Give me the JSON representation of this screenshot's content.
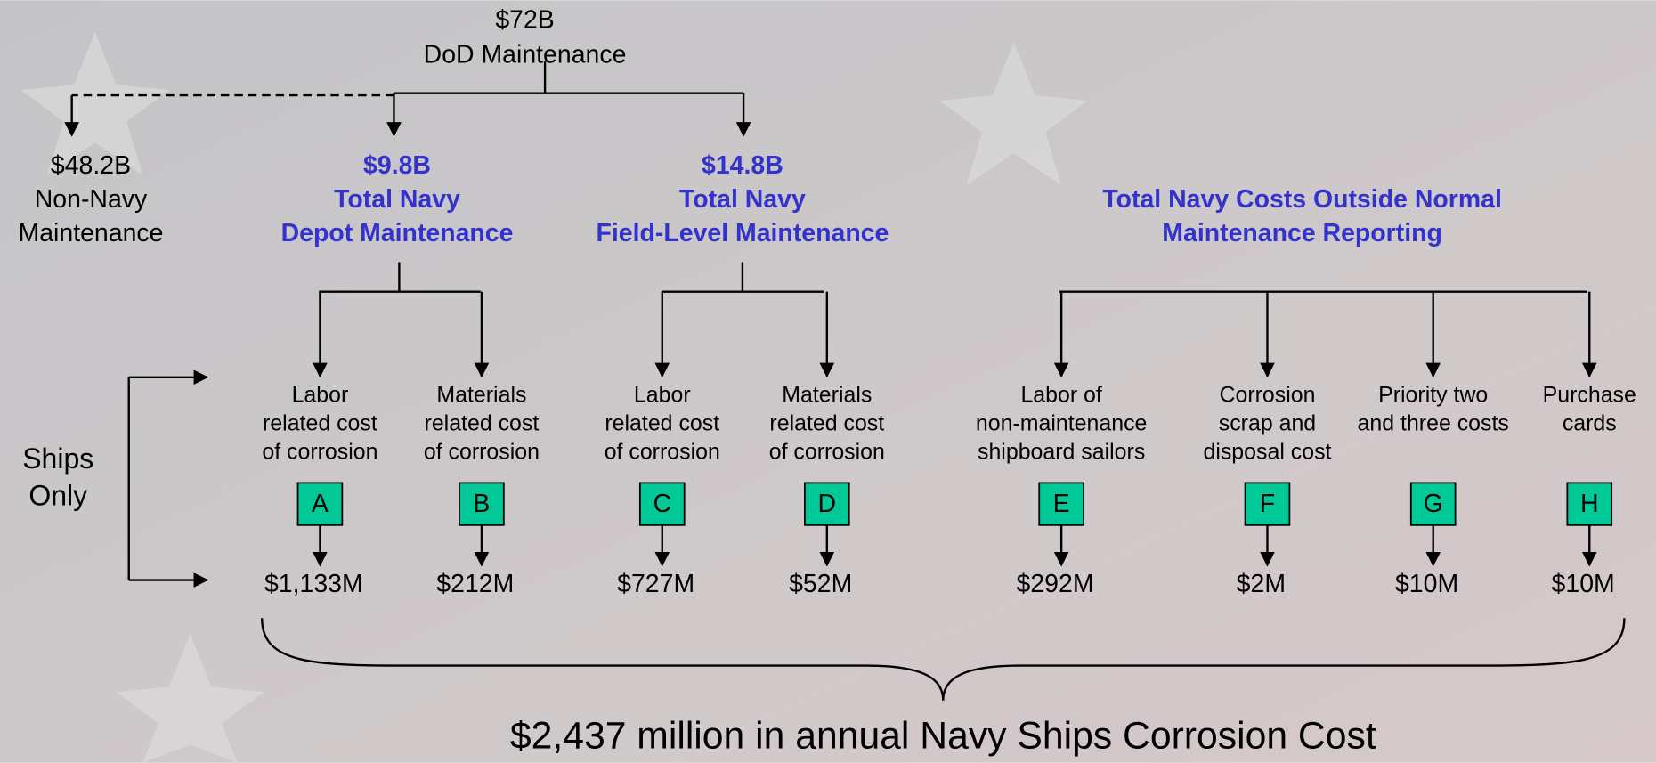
{
  "root": {
    "amount": "$72B",
    "label": "DoD Maintenance"
  },
  "non_navy": {
    "amount": "$48.2B",
    "label": [
      "Non-Navy",
      "Maintenance"
    ]
  },
  "depot": {
    "amount": "$9.8B",
    "label": [
      "Total Navy",
      "Depot Maintenance"
    ]
  },
  "field": {
    "amount": "$14.8B",
    "label": [
      "Total Navy",
      "Field-Level Maintenance"
    ]
  },
  "outside": {
    "label": [
      "Total Navy Costs Outside Normal",
      "Maintenance Reporting"
    ]
  },
  "side_label": [
    "Ships",
    "Only"
  ],
  "items": [
    {
      "description": [
        "Labor",
        "related cost",
        "of corrosion"
      ],
      "code": "A",
      "cost": "$1,133M"
    },
    {
      "description": [
        "Materials",
        "related cost",
        "of corrosion"
      ],
      "code": "B",
      "cost": "$212M"
    },
    {
      "description": [
        "Labor",
        "related cost",
        "of corrosion"
      ],
      "code": "C",
      "cost": "$727M"
    },
    {
      "description": [
        "Materials",
        "related cost",
        "of corrosion"
      ],
      "code": "D",
      "cost": "$52M"
    },
    {
      "description": [
        "Labor of",
        "non-maintenance",
        "shipboard sailors"
      ],
      "code": "E",
      "cost": "$292M"
    },
    {
      "description": [
        "Corrosion",
        "scrap and",
        "disposal cost"
      ],
      "code": "F",
      "cost": "$2M"
    },
    {
      "description": [
        "Priority two",
        "and three costs"
      ],
      "code": "G",
      "cost": "$10M"
    },
    {
      "description": [
        "Purchase",
        "cards"
      ],
      "code": "H",
      "cost": "$10M"
    }
  ],
  "total": "$2,437 million in annual Navy Ships Corrosion Cost"
}
